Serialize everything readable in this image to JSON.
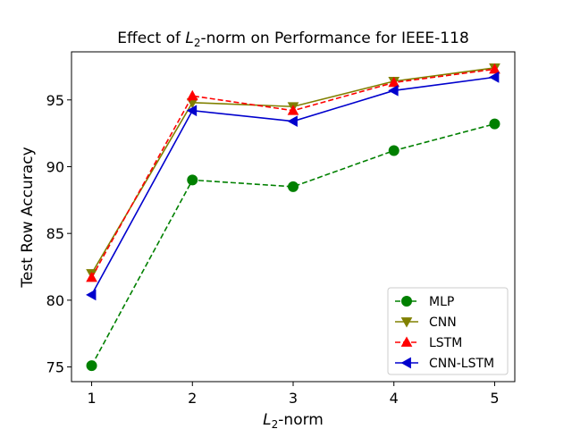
{
  "chart_data": {
    "type": "line",
    "title": {
      "prefix": "Effect of ",
      "var": "L",
      "sub": "2",
      "suffix": "-norm on Performance for IEEE-118"
    },
    "xlabel": {
      "var": "L",
      "sub": "2",
      "suffix": "-norm"
    },
    "ylabel": "Test Row Accuracy",
    "x": [
      1,
      2,
      3,
      4,
      5
    ],
    "xlim": [
      0.8,
      5.2
    ],
    "ylim": [
      73.9,
      98.6
    ],
    "xticks": [
      1,
      2,
      3,
      4,
      5
    ],
    "yticks": [
      75,
      80,
      85,
      90,
      95
    ],
    "grid": false,
    "legend_position": "lower-right",
    "series": [
      {
        "name": "MLP",
        "values": [
          75.1,
          89.0,
          88.5,
          91.2,
          93.2
        ],
        "color": "#008000",
        "dash": "dashed",
        "marker": "circle"
      },
      {
        "name": "CNN",
        "values": [
          82.0,
          94.8,
          94.5,
          96.4,
          97.4
        ],
        "color": "#808000",
        "dash": "solid",
        "marker": "triangle-down"
      },
      {
        "name": "LSTM",
        "values": [
          81.7,
          95.3,
          94.2,
          96.3,
          97.3
        ],
        "color": "#ff0000",
        "dash": "dashed",
        "marker": "triangle-up"
      },
      {
        "name": "CNN-LSTM",
        "values": [
          80.4,
          94.2,
          93.4,
          95.7,
          96.7
        ],
        "color": "#0000cd",
        "dash": "solid",
        "marker": "triangle-left"
      }
    ]
  }
}
